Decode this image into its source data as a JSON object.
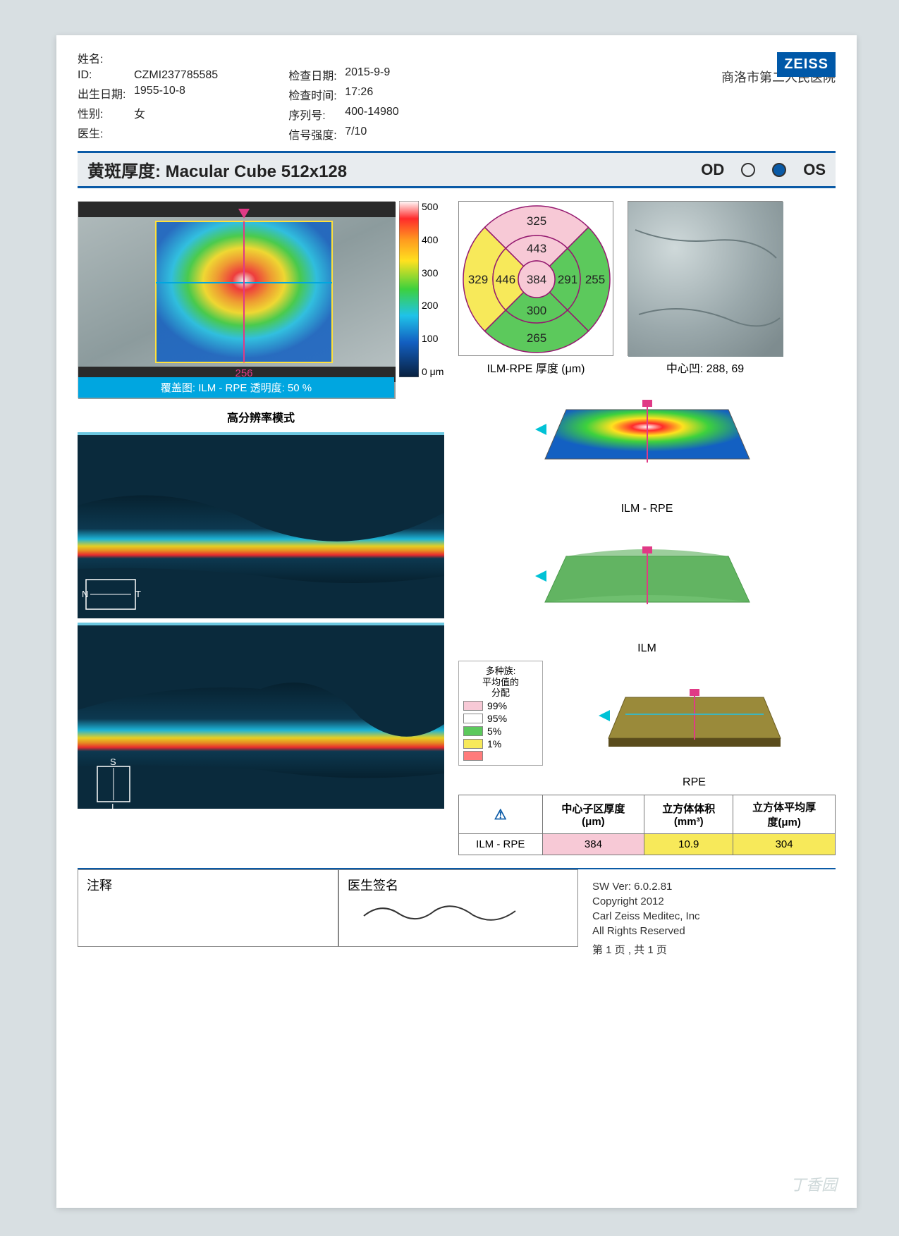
{
  "header": {
    "name_label": "姓名:",
    "name_value": "",
    "id_label": "ID:",
    "id_value": "CZMI237785585",
    "dob_label": "出生日期:",
    "dob_value": "1955-10-8",
    "sex_label": "性别:",
    "sex_value": "女",
    "doctor_label": "医生:",
    "doctor_value": "",
    "exam_date_label": "检查日期:",
    "exam_date_value": "2015-9-9",
    "exam_time_label": "检查时间:",
    "exam_time_value": "17:26",
    "series_label": "序列号:",
    "series_value": "400-14980",
    "signal_label": "信号强度:",
    "signal_value": "7/10",
    "hospital": "商洛市第二人民医院",
    "logo_text": "ZEISS"
  },
  "title": {
    "text": "黄斑厚度: Macular Cube 512x128",
    "od_label": "OD",
    "os_label": "OS",
    "selected": "OS"
  },
  "thickness_map": {
    "overlay_caption": "覆盖图: ILM - RPE  透明度: 50 %",
    "mode_caption": "高分辨率模式",
    "slice_value": "256",
    "marker_color": "#e03a86",
    "crosshair_color": "#00a6e0",
    "box_outline": "#ffe13a",
    "background_tone": "#8c9b9d"
  },
  "color_scale": {
    "unit": "μm",
    "labels": [
      "500",
      "400",
      "300",
      "200",
      "100",
      "0 μm"
    ],
    "stops": [
      {
        "c": "#ffffff",
        "p": 0
      },
      {
        "c": "#ff2b2b",
        "p": 10
      },
      {
        "c": "#ff9a1f",
        "p": 22
      },
      {
        "c": "#ffe11f",
        "p": 34
      },
      {
        "c": "#3dd13d",
        "p": 50
      },
      {
        "c": "#1fc3e8",
        "p": 65
      },
      {
        "c": "#1360c2",
        "p": 80
      },
      {
        "c": "#08203e",
        "p": 100
      }
    ]
  },
  "etdrs": {
    "caption": "ILM-RPE 厚度 (μm)",
    "center": {
      "v": 384,
      "fill": "#f7c9d6"
    },
    "inner": [
      {
        "v": 443,
        "fill": "#f7c9d6"
      },
      {
        "v": 291,
        "fill": "#5cc95c"
      },
      {
        "v": 300,
        "fill": "#5cc95c"
      },
      {
        "v": 446,
        "fill": "#f7e95a"
      }
    ],
    "outer": [
      {
        "v": 325,
        "fill": "#f7c9d6"
      },
      {
        "v": 255,
        "fill": "#5cc95c"
      },
      {
        "v": 265,
        "fill": "#5cc95c"
      },
      {
        "v": 329,
        "fill": "#f7e95a"
      }
    ],
    "stroke": "#951a70"
  },
  "fundus": {
    "caption": "中心凹: 288, 69"
  },
  "surfaces": {
    "ilm_rpe_caption": "ILM - RPE",
    "ilm_caption": "ILM",
    "rpe_caption": "RPE",
    "arrow_color": "#00c2d6",
    "marker_color": "#e03a86",
    "ilm_rpe_colors": [
      "#1360c2",
      "#3dd13d",
      "#ffe11f",
      "#ff2b2b",
      "#ffffff"
    ],
    "ilm_colors": [
      "#6fbf6f",
      "#4aa84a"
    ],
    "rpe_colors": [
      "#9a8a3a",
      "#7a6c2c"
    ]
  },
  "oct_scans": {
    "count": 2,
    "orientation_1": {
      "left": "N",
      "right": "T"
    },
    "orientation_2": {
      "top": "S",
      "bottom": "I"
    },
    "bg": "#0a2a3c",
    "band_colors": [
      "#0a2a3c",
      "#1fc3e8",
      "#ffe11f",
      "#ff9a1f",
      "#ff2b2b"
    ]
  },
  "percentile": {
    "title": "多种族:\n平均值的\n分配",
    "rows": [
      {
        "label": "99%",
        "color": "#f7c9d6"
      },
      {
        "label": "95%",
        "color": "#ffffff"
      },
      {
        "label": "5%",
        "color": "#5cc95c"
      },
      {
        "label": "1%",
        "color": "#f7e95a"
      },
      {
        "label": "",
        "color": "#ff7b7b"
      }
    ]
  },
  "summary_table": {
    "warning_icon": "⚠",
    "headers": [
      "",
      "中心子区厚度\n(μm)",
      "立方体体积\n(mm³)",
      "立方体平均厚\n度(μm)"
    ],
    "row_label": "ILM - RPE",
    "row_values": [
      "384",
      "10.9",
      "304"
    ],
    "cell_fills": [
      "#f7c9d6",
      "#f7e95a",
      "#f7e95a"
    ]
  },
  "footer": {
    "notes_label": "注释",
    "sig_label": "医生签名",
    "sw_ver": "SW Ver: 6.0.2.81",
    "copyright": "Copyright 2012",
    "company": "Carl Zeiss Meditec, Inc",
    "rights": "All Rights Reserved",
    "page": "第 1 页 , 共 1 页",
    "watermark": "丁香园"
  }
}
